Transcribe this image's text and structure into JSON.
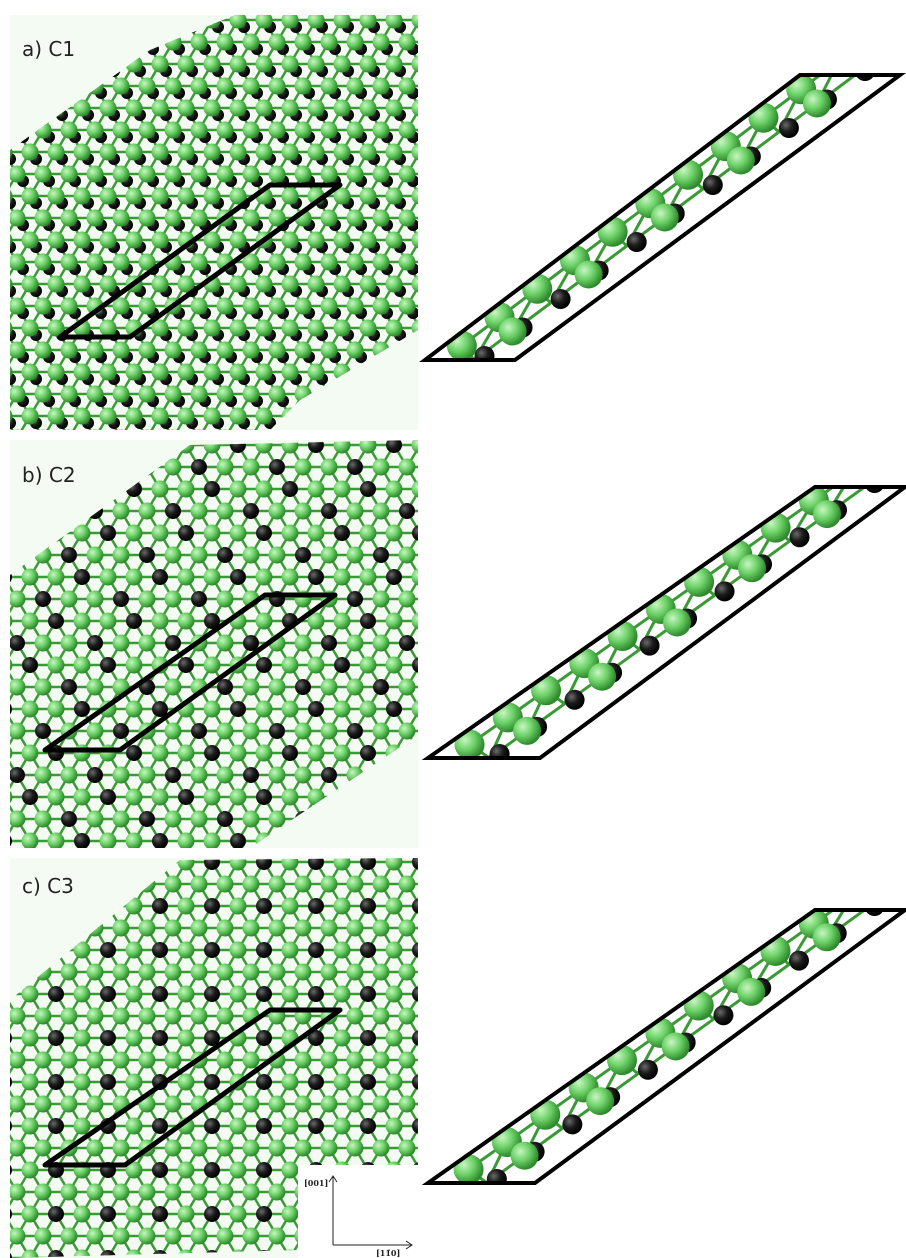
{
  "panels": [
    {
      "label": "a)  C1"
    },
    {
      "label": "b)  C2"
    },
    {
      "label": "c)  C3"
    }
  ],
  "axes": {
    "vertical": "[001]",
    "horizontal": "[11̄0]"
  }
}
